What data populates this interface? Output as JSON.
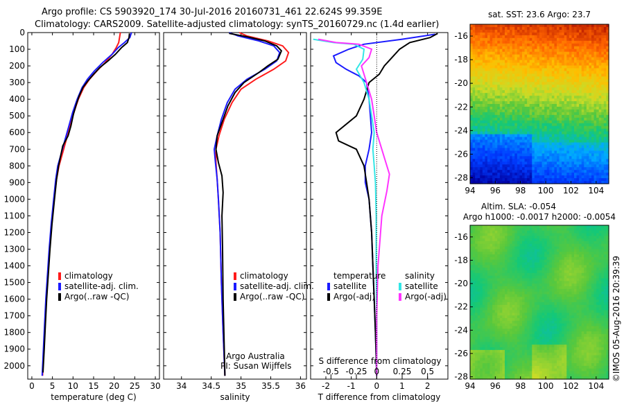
{
  "header": {
    "line1": "Argo profile: CS 5903920_174 30-Jul-2016 20160731_461 22.624S 99.359E",
    "line2": "Climatology: CARS2009. Satellite-adjusted climatology: synTS_20160729.nc (1.4d earlier)"
  },
  "map_top": {
    "title": "sat. SST: 23.6 Argo: 23.7"
  },
  "map_bottom": {
    "title1": "Altim. SLA: -0.054",
    "title2": "Argo h1000: -0.0017 h2000: -0.0054"
  },
  "footer_credit": "©IMOS 05-Aug-2016 20:39:39",
  "colors": {
    "climatology": "#ff1a1a",
    "satellite": "#1a1aff",
    "argo": "#000000",
    "sal_satellite": "#33e6e6",
    "sal_argo": "#ff33ff"
  },
  "chart_data": [
    {
      "type": "line",
      "xlabel": "temperature (deg C)",
      "ylabel": "",
      "xlim": [
        -1,
        31
      ],
      "ylim": [
        2080,
        0
      ],
      "xticks": [
        0,
        5,
        10,
        15,
        20,
        25,
        30
      ],
      "yticks": [
        0,
        100,
        200,
        300,
        400,
        500,
        600,
        700,
        800,
        900,
        1000,
        1100,
        1200,
        1300,
        1400,
        1500,
        1600,
        1700,
        1800,
        1900,
        2000
      ],
      "legend": [
        "climatology",
        "satellite-adj. clim.",
        "Argo(..raw -QC)"
      ],
      "series": [
        {
          "name": "climatology",
          "color": "#ff1a1a",
          "points": [
            [
              21.5,
              0
            ],
            [
              21.3,
              30
            ],
            [
              21.1,
              60
            ],
            [
              20.5,
              90
            ],
            [
              19.5,
              130
            ],
            [
              17.8,
              180
            ],
            [
              15.8,
              230
            ],
            [
              14.0,
              280
            ],
            [
              12.6,
              330
            ],
            [
              11.3,
              400
            ],
            [
              10.2,
              480
            ],
            [
              9.3,
              560
            ],
            [
              8.4,
              640
            ],
            [
              7.5,
              720
            ],
            [
              6.6,
              800
            ],
            [
              6.0,
              880
            ],
            [
              5.4,
              1000
            ],
            [
              4.8,
              1150
            ],
            [
              4.3,
              1300
            ],
            [
              3.9,
              1450
            ],
            [
              3.5,
              1600
            ],
            [
              3.2,
              1750
            ],
            [
              2.9,
              1900
            ],
            [
              2.6,
              2060
            ]
          ]
        },
        {
          "name": "satellite-adj. clim.",
          "color": "#1a1aff",
          "points": [
            [
              24.2,
              0
            ],
            [
              23.8,
              30
            ],
            [
              22.5,
              60
            ],
            [
              21.0,
              90
            ],
            [
              19.5,
              130
            ],
            [
              17.2,
              180
            ],
            [
              15.2,
              230
            ],
            [
              13.5,
              280
            ],
            [
              12.2,
              330
            ],
            [
              11.0,
              400
            ],
            [
              9.9,
              480
            ],
            [
              9.0,
              560
            ],
            [
              8.1,
              640
            ],
            [
              7.2,
              720
            ],
            [
              6.3,
              800
            ],
            [
              5.8,
              880
            ],
            [
              5.3,
              1000
            ],
            [
              4.7,
              1150
            ],
            [
              4.2,
              1300
            ],
            [
              3.8,
              1450
            ],
            [
              3.4,
              1600
            ],
            [
              3.1,
              1750
            ],
            [
              2.8,
              1900
            ],
            [
              2.5,
              2060
            ]
          ]
        },
        {
          "name": "Argo(..raw -QC)",
          "color": "#000000",
          "points": [
            [
              23.7,
              5
            ],
            [
              23.6,
              30
            ],
            [
              23.2,
              60
            ],
            [
              21.8,
              90
            ],
            [
              20.3,
              130
            ],
            [
              18.5,
              170
            ],
            [
              16.5,
              210
            ],
            [
              15.0,
              250
            ],
            [
              13.6,
              290
            ],
            [
              12.4,
              330
            ],
            [
              11.5,
              380
            ],
            [
              10.8,
              430
            ],
            [
              10.1,
              490
            ],
            [
              9.5,
              560
            ],
            [
              8.8,
              620
            ],
            [
              7.5,
              680
            ],
            [
              7.0,
              740
            ],
            [
              6.5,
              800
            ],
            [
              6.0,
              880
            ],
            [
              5.5,
              1000
            ],
            [
              4.9,
              1150
            ],
            [
              4.4,
              1300
            ],
            [
              4.0,
              1450
            ],
            [
              3.6,
              1600
            ],
            [
              3.3,
              1750
            ],
            [
              3.0,
              1900
            ],
            [
              2.7,
              2040
            ]
          ]
        }
      ]
    },
    {
      "type": "line",
      "xlabel": "salinity",
      "ylabel": "",
      "xlim": [
        33.7,
        36.1
      ],
      "ylim": [
        2080,
        0
      ],
      "xticks": [
        34,
        34.5,
        35,
        35.5,
        36
      ],
      "legend": [
        "climatology",
        "satellite-adj. clim.",
        "Argo(..raw -QC)"
      ],
      "annotation": [
        "Argo Australia",
        "PI: Susan Wijffels"
      ],
      "series": [
        {
          "name": "climatology",
          "color": "#ff1a1a",
          "points": [
            [
              34.97,
              0
            ],
            [
              35.1,
              20
            ],
            [
              35.45,
              50
            ],
            [
              35.7,
              80
            ],
            [
              35.8,
              120
            ],
            [
              35.75,
              170
            ],
            [
              35.55,
              220
            ],
            [
              35.25,
              280
            ],
            [
              35.0,
              340
            ],
            [
              34.85,
              420
            ],
            [
              34.72,
              520
            ],
            [
              34.63,
              620
            ],
            [
              34.58,
              700
            ],
            [
              34.58,
              780
            ],
            [
              34.6,
              880
            ],
            [
              34.62,
              1000
            ],
            [
              34.65,
              1200
            ],
            [
              34.67,
              1500
            ],
            [
              34.7,
              1800
            ],
            [
              34.73,
              2060
            ]
          ]
        },
        {
          "name": "satellite-adj. clim.",
          "color": "#1a1aff",
          "points": [
            [
              34.8,
              0
            ],
            [
              34.95,
              20
            ],
            [
              35.3,
              50
            ],
            [
              35.55,
              80
            ],
            [
              35.65,
              120
            ],
            [
              35.6,
              170
            ],
            [
              35.4,
              220
            ],
            [
              35.1,
              280
            ],
            [
              34.9,
              340
            ],
            [
              34.77,
              420
            ],
            [
              34.67,
              520
            ],
            [
              34.6,
              620
            ],
            [
              34.55,
              700
            ],
            [
              34.57,
              780
            ],
            [
              34.6,
              880
            ],
            [
              34.62,
              1000
            ],
            [
              34.65,
              1200
            ],
            [
              34.67,
              1500
            ],
            [
              34.7,
              1800
            ],
            [
              34.73,
              2060
            ]
          ]
        },
        {
          "name": "Argo(..raw -QC)",
          "color": "#000000",
          "points": [
            [
              34.8,
              5
            ],
            [
              35.1,
              25
            ],
            [
              35.4,
              50
            ],
            [
              35.6,
              80
            ],
            [
              35.68,
              110
            ],
            [
              35.62,
              160
            ],
            [
              35.45,
              200
            ],
            [
              35.3,
              240
            ],
            [
              35.05,
              300
            ],
            [
              34.9,
              360
            ],
            [
              34.78,
              440
            ],
            [
              34.68,
              540
            ],
            [
              34.6,
              620
            ],
            [
              34.58,
              700
            ],
            [
              34.62,
              780
            ],
            [
              34.68,
              860
            ],
            [
              34.7,
              960
            ],
            [
              34.68,
              1100
            ],
            [
              34.69,
              1300
            ],
            [
              34.7,
              1600
            ],
            [
              34.72,
              1900
            ],
            [
              34.73,
              2060
            ]
          ]
        }
      ]
    },
    {
      "type": "line",
      "xlabel": "T difference from climatology",
      "xlabel2": "S difference from climatology",
      "xlim": [
        -2.6,
        2.8
      ],
      "ylim": [
        2080,
        0
      ],
      "xticks": [
        -2,
        -1,
        0,
        1,
        2
      ],
      "xticks2": [
        "-0.5",
        "-0.25",
        "0",
        "0.25",
        "0.5"
      ],
      "legend_titles": [
        "temperature",
        "salinity"
      ],
      "legend": [
        "satellite",
        "Argo(-adj)",
        "satellite",
        "Argo(-adj)"
      ],
      "series": [
        {
          "name": "satellite",
          "color": "#1a1aff",
          "points": [
            [
              2.3,
              10
            ],
            [
              1.0,
              40
            ],
            [
              -0.5,
              70
            ],
            [
              -1.1,
              100
            ],
            [
              -1.7,
              140
            ],
            [
              -1.6,
              180
            ],
            [
              -1.2,
              220
            ],
            [
              -0.7,
              260
            ],
            [
              -0.4,
              300
            ],
            [
              -0.3,
              400
            ],
            [
              -0.25,
              500
            ],
            [
              -0.2,
              600
            ],
            [
              -0.3,
              700
            ],
            [
              -0.45,
              800
            ],
            [
              -0.45,
              900
            ],
            [
              -0.3,
              1000
            ],
            [
              -0.2,
              1200
            ],
            [
              -0.15,
              1400
            ],
            [
              -0.1,
              1600
            ],
            [
              -0.05,
              1800
            ],
            [
              0.0,
              2060
            ]
          ]
        },
        {
          "name": "Argo(-adj)",
          "color": "#000000",
          "points": [
            [
              2.4,
              5
            ],
            [
              2.1,
              30
            ],
            [
              1.3,
              60
            ],
            [
              0.9,
              100
            ],
            [
              0.6,
              150
            ],
            [
              0.3,
              200
            ],
            [
              0.1,
              250
            ],
            [
              -0.3,
              300
            ],
            [
              -0.5,
              400
            ],
            [
              -0.8,
              500
            ],
            [
              -1.6,
              600
            ],
            [
              -1.5,
              650
            ],
            [
              -0.8,
              700
            ],
            [
              -0.5,
              800
            ],
            [
              -0.4,
              900
            ],
            [
              -0.3,
              1000
            ],
            [
              -0.2,
              1200
            ],
            [
              -0.15,
              1400
            ],
            [
              -0.1,
              1600
            ],
            [
              -0.05,
              1800
            ],
            [
              0.0,
              2060
            ]
          ]
        },
        {
          "name": "satellite",
          "color": "#33e6e6",
          "points": [
            [
              -2.5,
              40
            ],
            [
              -1.7,
              60
            ],
            [
              -0.9,
              70
            ],
            [
              -0.5,
              100
            ],
            [
              -0.55,
              160
            ],
            [
              -0.8,
              220
            ],
            [
              -0.5,
              300
            ],
            [
              -0.3,
              400
            ],
            [
              -0.2,
              500
            ],
            [
              -0.1,
              600
            ],
            [
              -0.15,
              700
            ],
            [
              -0.1,
              800
            ],
            [
              -0.05,
              900
            ],
            [
              -0.02,
              1100
            ],
            [
              -0.02,
              1400
            ],
            [
              0.0,
              1700
            ],
            [
              0.0,
              2060
            ]
          ]
        },
        {
          "name": "Argo(-adj)",
          "color": "#ff33ff",
          "points": [
            [
              -2.3,
              40
            ],
            [
              -1.6,
              60
            ],
            [
              -0.7,
              70
            ],
            [
              -0.2,
              100
            ],
            [
              -0.3,
              150
            ],
            [
              -0.6,
              200
            ],
            [
              -0.4,
              300
            ],
            [
              -0.2,
              400
            ],
            [
              -0.1,
              500
            ],
            [
              0.0,
              600
            ],
            [
              0.3,
              750
            ],
            [
              0.5,
              850
            ],
            [
              0.4,
              950
            ],
            [
              0.2,
              1100
            ],
            [
              0.05,
              1400
            ],
            [
              0.0,
              1700
            ],
            [
              0.0,
              2060
            ]
          ]
        }
      ]
    },
    {
      "type": "heatmap",
      "title": "sat. SST: 23.6 Argo: 23.7",
      "xlim": [
        94,
        105
      ],
      "ylim": [
        -28.5,
        -15
      ],
      "xticks": [
        94,
        96,
        98,
        100,
        102,
        104
      ],
      "yticks": [
        -16,
        -18,
        -20,
        -22,
        -24,
        -26,
        -28
      ]
    },
    {
      "type": "heatmap",
      "title": "Altim. SLA: -0.054",
      "xlim": [
        94,
        105
      ],
      "ylim": [
        -28.2,
        -15
      ],
      "xticks": [
        94,
        96,
        98,
        100,
        102,
        104
      ],
      "yticks": [
        -16,
        -18,
        -20,
        -22,
        -24,
        -26,
        -28
      ]
    }
  ]
}
